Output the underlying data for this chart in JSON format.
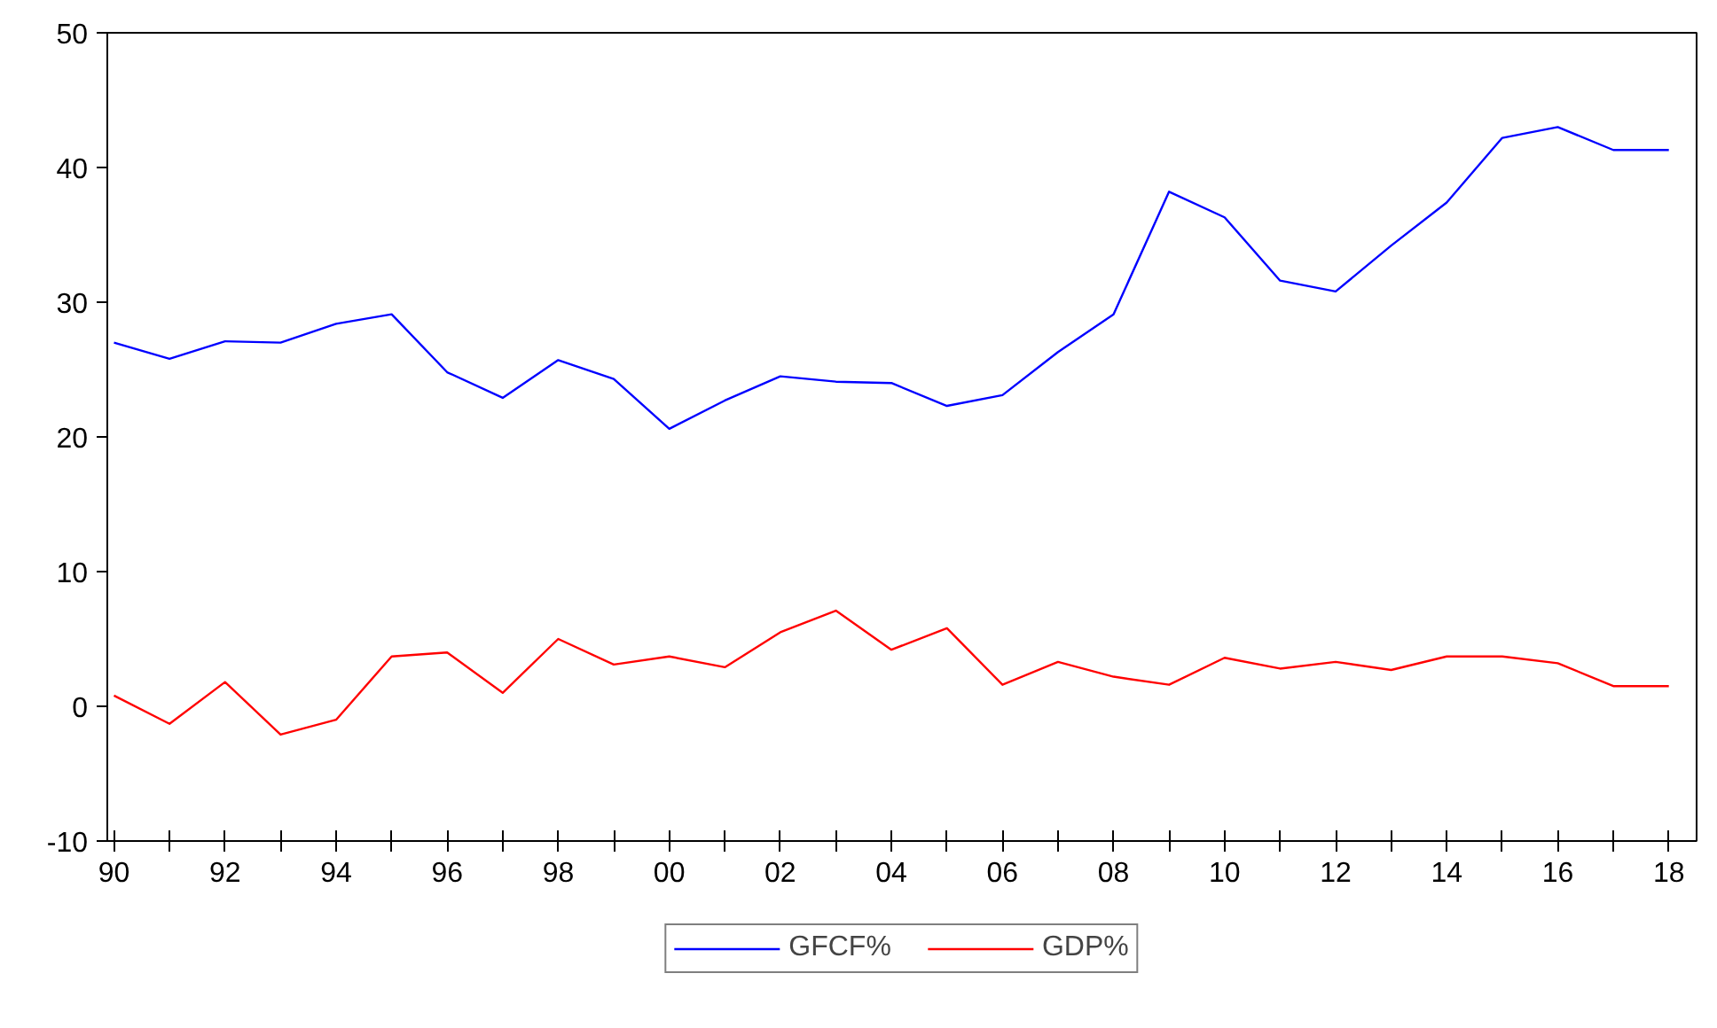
{
  "chart_data": {
    "type": "line",
    "x": [
      1990,
      1991,
      1992,
      1993,
      1994,
      1995,
      1996,
      1997,
      1998,
      1999,
      2000,
      2001,
      2002,
      2003,
      2004,
      2005,
      2006,
      2007,
      2008,
      2009,
      2010,
      2011,
      2012,
      2013,
      2014,
      2015,
      2016,
      2017,
      2018
    ],
    "series": [
      {
        "name": "GFCF%",
        "color": "#0000ff",
        "values": [
          27.0,
          25.8,
          27.1,
          27.0,
          28.4,
          29.1,
          24.8,
          22.9,
          25.7,
          24.3,
          20.6,
          22.7,
          24.5,
          24.1,
          24.0,
          22.3,
          23.1,
          26.3,
          29.1,
          38.2,
          36.3,
          31.6,
          30.8,
          34.2,
          37.4,
          42.2,
          43.0,
          41.3,
          41.3
        ]
      },
      {
        "name": "GDP%",
        "color": "#ff0000",
        "values": [
          0.8,
          -1.3,
          1.8,
          -2.1,
          -1.0,
          3.7,
          4.0,
          1.0,
          5.0,
          3.1,
          3.7,
          2.9,
          5.5,
          7.1,
          4.2,
          5.8,
          1.6,
          3.3,
          2.2,
          1.6,
          3.6,
          2.8,
          3.3,
          2.7,
          3.7,
          3.7,
          3.2,
          1.5,
          1.5
        ]
      }
    ],
    "xlim": [
      1989.88,
      2018.5
    ],
    "xticks": [
      {
        "value": 1990,
        "label": "90"
      },
      {
        "value": 1991,
        "label": null
      },
      {
        "value": 1992,
        "label": "92"
      },
      {
        "value": 1993,
        "label": null
      },
      {
        "value": 1994,
        "label": "94"
      },
      {
        "value": 1995,
        "label": null
      },
      {
        "value": 1996,
        "label": "96"
      },
      {
        "value": 1997,
        "label": null
      },
      {
        "value": 1998,
        "label": "98"
      },
      {
        "value": 1999,
        "label": null
      },
      {
        "value": 2000,
        "label": "00"
      },
      {
        "value": 2001,
        "label": null
      },
      {
        "value": 2002,
        "label": "02"
      },
      {
        "value": 2003,
        "label": null
      },
      {
        "value": 2004,
        "label": "04"
      },
      {
        "value": 2005,
        "label": null
      },
      {
        "value": 2006,
        "label": "06"
      },
      {
        "value": 2007,
        "label": null
      },
      {
        "value": 2008,
        "label": "08"
      },
      {
        "value": 2009,
        "label": null
      },
      {
        "value": 2010,
        "label": "10"
      },
      {
        "value": 2011,
        "label": null
      },
      {
        "value": 2012,
        "label": "12"
      },
      {
        "value": 2013,
        "label": null
      },
      {
        "value": 2014,
        "label": "14"
      },
      {
        "value": 2015,
        "label": null
      },
      {
        "value": 2016,
        "label": "16"
      },
      {
        "value": 2017,
        "label": null
      },
      {
        "value": 2018,
        "label": "18"
      }
    ],
    "ylim": [
      -10,
      50
    ],
    "yticks": [
      -10,
      0,
      10,
      20,
      30,
      40,
      50
    ],
    "grid": false,
    "legend": "bottom",
    "marker": "none",
    "line_style": "solid"
  }
}
